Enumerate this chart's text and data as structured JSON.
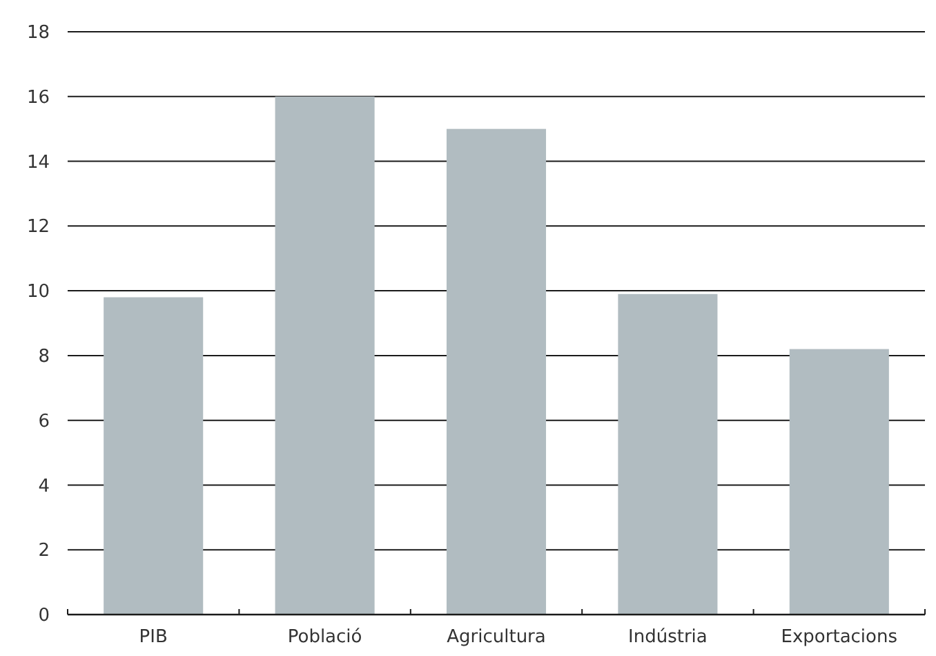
{
  "chart_data": {
    "type": "bar",
    "categories": [
      "PIB",
      "Població",
      "Agricultura",
      "Indústria",
      "Exportacions"
    ],
    "values": [
      9.8,
      16,
      15,
      9.9,
      8.2
    ],
    "color": "#b1bcc1",
    "ylim": [
      0,
      18
    ],
    "yticks": [
      0,
      2,
      4,
      6,
      8,
      10,
      12,
      14,
      16,
      18
    ],
    "grid": "y"
  }
}
